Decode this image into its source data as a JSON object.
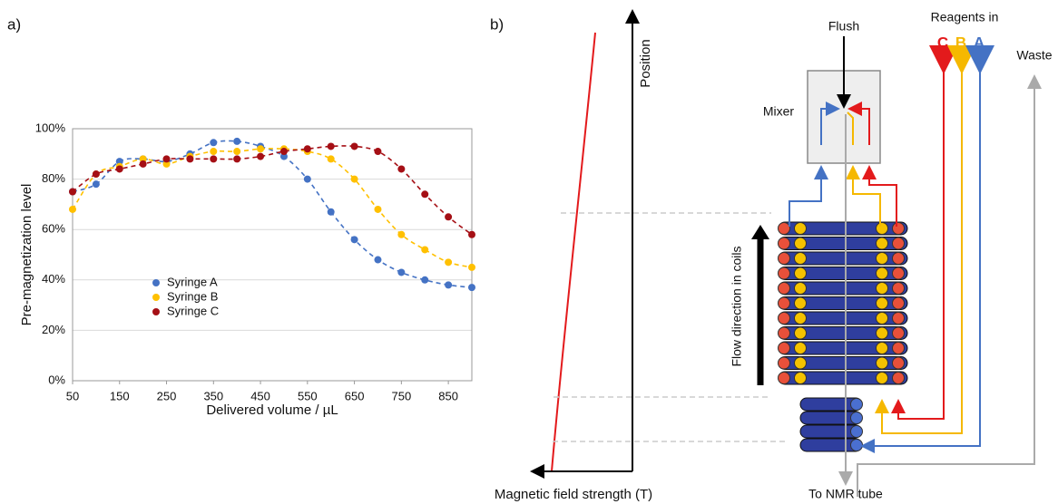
{
  "chart_data": {
    "type": "scatter",
    "xlabel": "Delivered volume / µL",
    "ylabel": "Pre-magnetization level",
    "x": [
      50,
      100,
      150,
      200,
      250,
      300,
      350,
      400,
      450,
      500,
      550,
      600,
      650,
      700,
      750,
      800,
      850,
      900
    ],
    "series": [
      {
        "name": "Syringe A",
        "color": "#4472c4",
        "values": [
          75,
          78,
          87,
          88,
          87,
          90,
          94.5,
          95,
          93,
          89,
          80,
          67,
          56,
          48,
          43,
          40,
          38,
          37
        ]
      },
      {
        "name": "Syringe B",
        "color": "#ffc000",
        "values": [
          68,
          82,
          85,
          88,
          86,
          89,
          91,
          91,
          92,
          92,
          91,
          88,
          80,
          68,
          58,
          52,
          47,
          45
        ]
      },
      {
        "name": "Syringe C",
        "color": "#a50f15",
        "values": [
          75,
          82,
          84,
          86,
          88,
          88,
          88,
          88,
          89,
          91,
          92,
          93,
          93,
          91,
          84,
          74,
          65,
          58
        ]
      }
    ],
    "xlim": [
      50,
      900
    ],
    "xticks": [
      50,
      150,
      250,
      350,
      450,
      550,
      650,
      750,
      850
    ],
    "ylim": [
      0,
      100
    ],
    "yticks": [
      {
        "value": 0,
        "label": "0%"
      },
      {
        "value": 20,
        "label": "20%"
      },
      {
        "value": 40,
        "label": "40%"
      },
      {
        "value": 60,
        "label": "60%"
      },
      {
        "value": 80,
        "label": "80%"
      },
      {
        "value": 100,
        "label": "100%"
      }
    ],
    "grid": true,
    "legend": "left",
    "line_style": "dashed"
  },
  "panel_labels": [
    "a)",
    "b)"
  ],
  "diagram": {
    "position_axis": "Position",
    "field_axis": "Magnetic field strength (T)",
    "flush": "Flush",
    "reagents": "Reagents in",
    "reagent_labels": [
      "C",
      "B",
      "A"
    ],
    "waste": "Waste",
    "mixer": "Mixer",
    "flow": "Flow direction in coils",
    "outlet": "To NMR tube"
  }
}
